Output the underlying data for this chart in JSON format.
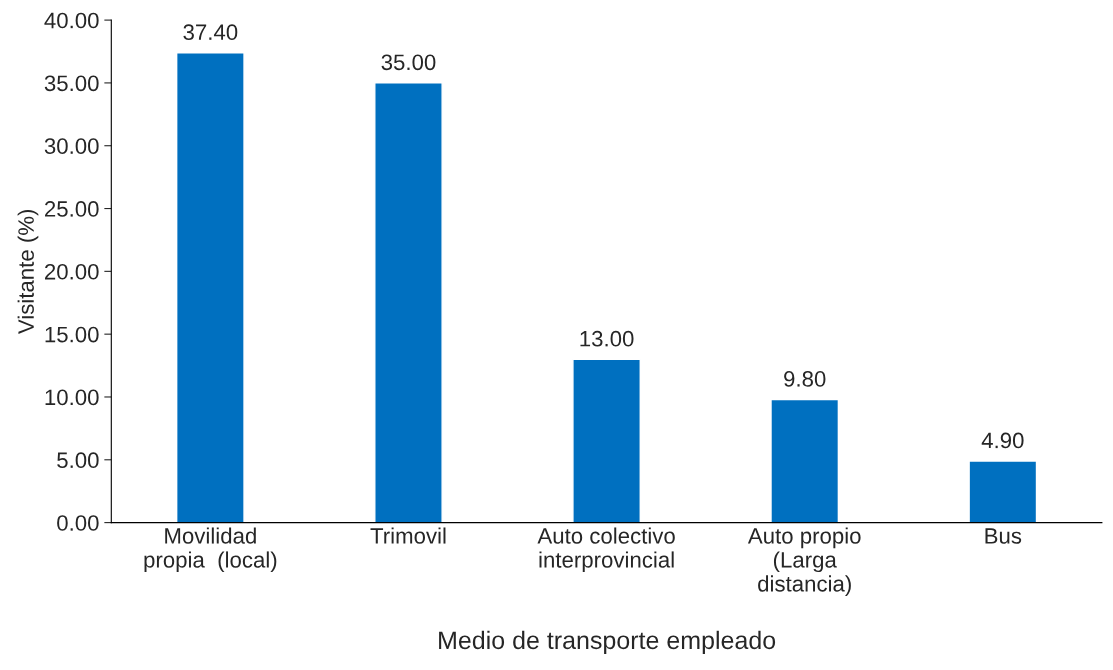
{
  "chart_data": {
    "type": "bar",
    "xlabel": "Medio de transporte empleado",
    "ylabel": "Visitante (%)",
    "categories": [
      "Movilidad\npropia  (local)",
      "Trimovil",
      "Auto colectivo\ninterprovincial",
      "Auto propio\n(Larga\ndistancia)",
      "Bus"
    ],
    "values": [
      37.4,
      35.0,
      13.0,
      9.8,
      4.9
    ],
    "value_labels": [
      "37.40",
      "35.00",
      "13.00",
      "9.80",
      "4.90"
    ],
    "color": "#0070c0",
    "ylim": [
      0,
      40
    ],
    "yticks": [
      {
        "value": 0,
        "label": "0.00"
      },
      {
        "value": 5,
        "label": "5.00"
      },
      {
        "value": 10,
        "label": "10.00"
      },
      {
        "value": 15,
        "label": "15.00"
      },
      {
        "value": 20,
        "label": "20.00"
      },
      {
        "value": 25,
        "label": "25.00"
      },
      {
        "value": 30,
        "label": "30.00"
      },
      {
        "value": 35,
        "label": "35.00"
      },
      {
        "value": 40,
        "label": "40.00"
      }
    ],
    "grid": false
  }
}
